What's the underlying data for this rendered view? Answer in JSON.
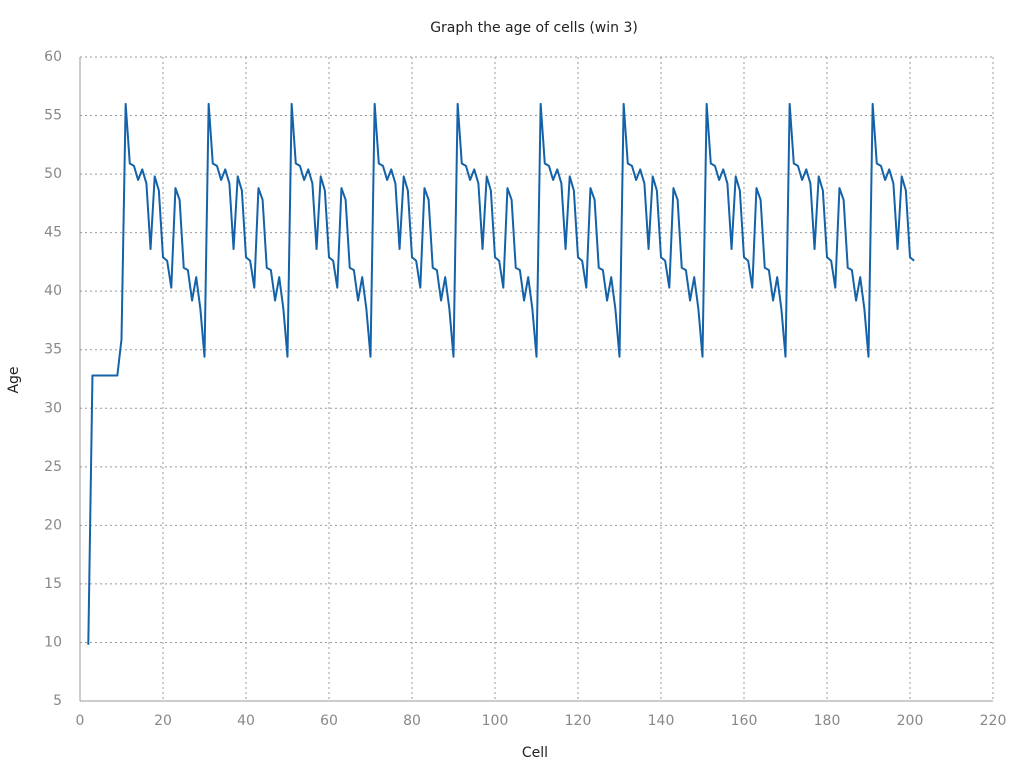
{
  "chart_data": {
    "type": "line",
    "title": "Graph the age of cells (win 3)",
    "xlabel": "Cell",
    "ylabel": "Age",
    "x": [
      2,
      3,
      4,
      5,
      6,
      7,
      8,
      9,
      10,
      11,
      12,
      13,
      14,
      15,
      16,
      17,
      18,
      19,
      20,
      21,
      22,
      23,
      24,
      25,
      26,
      27,
      28,
      29,
      30,
      31,
      32,
      33,
      34,
      35,
      36,
      37,
      38,
      39,
      40,
      41,
      42,
      43,
      44,
      45,
      46,
      47,
      48,
      49,
      50,
      51,
      52,
      53,
      54,
      55,
      56,
      57,
      58,
      59,
      60,
      61,
      62,
      63,
      64,
      65,
      66,
      67,
      68,
      69,
      70,
      71,
      72,
      73,
      74,
      75,
      76,
      77,
      78,
      79,
      80,
      81,
      82,
      83,
      84,
      85,
      86,
      87,
      88,
      89,
      90,
      91,
      92,
      93,
      94,
      95,
      96,
      97,
      98,
      99,
      100,
      101,
      102,
      103,
      104,
      105,
      106,
      107,
      108,
      109,
      110,
      111,
      112,
      113,
      114,
      115,
      116,
      117,
      118,
      119,
      120,
      121,
      122,
      123,
      124,
      125,
      126,
      127,
      128,
      129,
      130,
      131,
      132,
      133,
      134,
      135,
      136,
      137,
      138,
      139,
      140,
      141,
      142,
      143,
      144,
      145,
      146,
      147,
      148,
      149,
      150,
      151,
      152,
      153,
      154,
      155,
      156,
      157,
      158,
      159,
      160,
      161,
      162,
      163,
      164,
      165,
      166,
      167,
      168,
      169,
      170,
      171,
      172,
      173,
      174,
      175,
      176,
      177,
      178,
      179,
      180,
      181,
      182,
      183,
      184,
      185,
      186,
      187,
      188,
      189,
      190,
      191,
      192,
      193,
      194,
      195,
      196,
      197,
      198,
      199,
      200,
      201
    ],
    "series": [
      {
        "name": "Age",
        "color": "#1462a8",
        "values": [
          9.8,
          32.8,
          32.8,
          32.8,
          32.8,
          32.8,
          32.8,
          32.8,
          35.9,
          56.0,
          50.9,
          50.7,
          49.5,
          50.4,
          49.2,
          43.6,
          49.8,
          48.6,
          42.9,
          42.6,
          40.3,
          48.8,
          47.8,
          42.0,
          41.8,
          39.2,
          41.2,
          38.5,
          34.4,
          56.0,
          50.9,
          50.7,
          49.5,
          50.4,
          49.2,
          43.6,
          49.8,
          48.6,
          42.9,
          42.6,
          40.3,
          48.8,
          47.8,
          42.0,
          41.8,
          39.2,
          41.2,
          38.5,
          34.4,
          56.0,
          50.9,
          50.7,
          49.5,
          50.4,
          49.2,
          43.6,
          49.8,
          48.6,
          42.9,
          42.6,
          40.3,
          48.8,
          47.8,
          42.0,
          41.8,
          39.2,
          41.2,
          38.5,
          34.4,
          56.0,
          50.9,
          50.7,
          49.5,
          50.4,
          49.2,
          43.6,
          49.8,
          48.6,
          42.9,
          42.6,
          40.3,
          48.8,
          47.8,
          42.0,
          41.8,
          39.2,
          41.2,
          38.5,
          34.4,
          56.0,
          50.9,
          50.7,
          49.5,
          50.4,
          49.2,
          43.6,
          49.8,
          48.6,
          42.9,
          42.6,
          40.3,
          48.8,
          47.8,
          42.0,
          41.8,
          39.2,
          41.2,
          38.5,
          34.4,
          56.0,
          50.9,
          50.7,
          49.5,
          50.4,
          49.2,
          43.6,
          49.8,
          48.6,
          42.9,
          42.6,
          40.3,
          48.8,
          47.8,
          42.0,
          41.8,
          39.2,
          41.2,
          38.5,
          34.4,
          56.0,
          50.9,
          50.7,
          49.5,
          50.4,
          49.2,
          43.6,
          49.8,
          48.6,
          42.9,
          42.6,
          40.3,
          48.8,
          47.8,
          42.0,
          41.8,
          39.2,
          41.2,
          38.5,
          34.4,
          56.0,
          50.9,
          50.7,
          49.5,
          50.4,
          49.2,
          43.6,
          49.8,
          48.6,
          42.9,
          42.6,
          40.3,
          48.8,
          47.8,
          42.0,
          41.8,
          39.2,
          41.2,
          38.5,
          34.4,
          56.0,
          50.9,
          50.7,
          49.5,
          50.4,
          49.2,
          43.6,
          49.8,
          48.6,
          42.9,
          42.6,
          40.3,
          48.8,
          47.8,
          42.0,
          41.8,
          39.2,
          41.2,
          38.5,
          34.4,
          56.0,
          50.9,
          50.7,
          49.5,
          50.4,
          49.2,
          43.6,
          49.8,
          48.6,
          42.9,
          42.6
        ]
      }
    ],
    "xlim": [
      0,
      220
    ],
    "xticks": [
      0,
      20,
      40,
      60,
      80,
      100,
      120,
      140,
      160,
      180,
      200,
      220
    ],
    "ylim": [
      5,
      60
    ],
    "yticks": [
      5,
      10,
      15,
      20,
      25,
      30,
      35,
      40,
      45,
      50,
      55,
      60
    ],
    "grid": true
  }
}
